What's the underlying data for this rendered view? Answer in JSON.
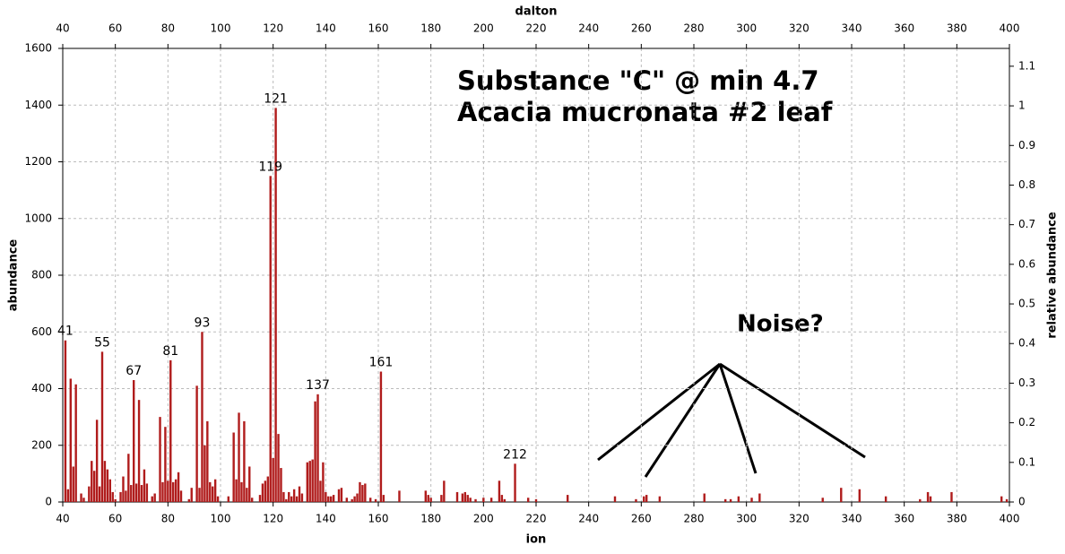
{
  "chart_data": {
    "type": "bar",
    "title": "Substance \"C\" @ min 4.7",
    "subtitle": "Acacia mucronata #2 leaf",
    "annotation": "Noise?",
    "xlabel": "ion",
    "x2label": "dalton",
    "ylabel": "abundance",
    "y2label": "relative abundance",
    "color": "#b01c1c",
    "x": [
      41,
      42,
      43,
      44,
      45,
      47,
      48,
      50,
      51,
      52,
      53,
      54,
      55,
      56,
      57,
      58,
      59,
      60,
      62,
      63,
      64,
      65,
      66,
      67,
      68,
      69,
      70,
      71,
      72,
      74,
      75,
      77,
      78,
      79,
      80,
      81,
      82,
      83,
      84,
      85,
      88,
      89,
      91,
      92,
      93,
      94,
      95,
      96,
      97,
      98,
      99,
      103,
      105,
      106,
      107,
      108,
      109,
      110,
      111,
      112,
      115,
      116,
      117,
      118,
      119,
      120,
      121,
      122,
      123,
      124,
      125,
      126,
      127,
      128,
      129,
      130,
      131,
      133,
      134,
      135,
      136,
      137,
      138,
      139,
      140,
      141,
      142,
      143,
      145,
      146,
      148,
      150,
      151,
      152,
      153,
      154,
      155,
      157,
      159,
      161,
      162,
      168,
      178,
      179,
      180,
      184,
      185,
      190,
      192,
      193,
      194,
      195,
      197,
      200,
      203,
      206,
      207,
      208,
      212,
      217,
      220,
      232,
      250,
      258,
      261,
      262,
      267,
      284,
      292,
      294,
      297,
      302,
      305,
      329,
      336,
      343,
      353,
      366,
      369,
      370,
      378,
      397,
      399
    ],
    "values": [
      570,
      45,
      435,
      125,
      415,
      30,
      15,
      55,
      145,
      110,
      290,
      55,
      530,
      145,
      115,
      80,
      35,
      10,
      35,
      90,
      40,
      170,
      60,
      430,
      65,
      360,
      60,
      115,
      65,
      20,
      30,
      300,
      70,
      265,
      75,
      500,
      70,
      80,
      105,
      40,
      10,
      50,
      410,
      50,
      600,
      200,
      285,
      70,
      55,
      80,
      20,
      20,
      245,
      80,
      315,
      70,
      285,
      50,
      125,
      15,
      25,
      65,
      75,
      90,
      1150,
      155,
      1390,
      240,
      120,
      35,
      10,
      35,
      20,
      45,
      20,
      55,
      30,
      140,
      145,
      150,
      355,
      380,
      75,
      140,
      35,
      20,
      20,
      25,
      45,
      50,
      15,
      10,
      20,
      30,
      70,
      60,
      65,
      15,
      10,
      460,
      25,
      40,
      40,
      25,
      15,
      25,
      75,
      35,
      30,
      35,
      25,
      15,
      10,
      15,
      15,
      75,
      25,
      10,
      135,
      15,
      10,
      25,
      20,
      10,
      20,
      25,
      20,
      30,
      10,
      10,
      20,
      15,
      30,
      15,
      50,
      45,
      20,
      10,
      35,
      20,
      35,
      20,
      10
    ],
    "peak_labels": [
      41,
      55,
      67,
      81,
      93,
      119,
      121,
      137,
      161,
      212
    ],
    "xlim": [
      40,
      400
    ],
    "xticks": [
      40,
      60,
      80,
      100,
      120,
      140,
      160,
      180,
      200,
      220,
      240,
      260,
      280,
      300,
      320,
      340,
      360,
      380,
      400
    ],
    "ylim": [
      0,
      1600
    ],
    "yticks": [
      0,
      200,
      400,
      600,
      800,
      1000,
      1200,
      1400,
      1600
    ],
    "y2lim": [
      0,
      1.145
    ],
    "y2ticks": [
      0,
      0.1,
      0.2,
      0.3,
      0.4,
      0.5,
      0.6,
      0.7,
      0.8,
      0.9,
      1,
      1.1
    ],
    "grid": true
  }
}
